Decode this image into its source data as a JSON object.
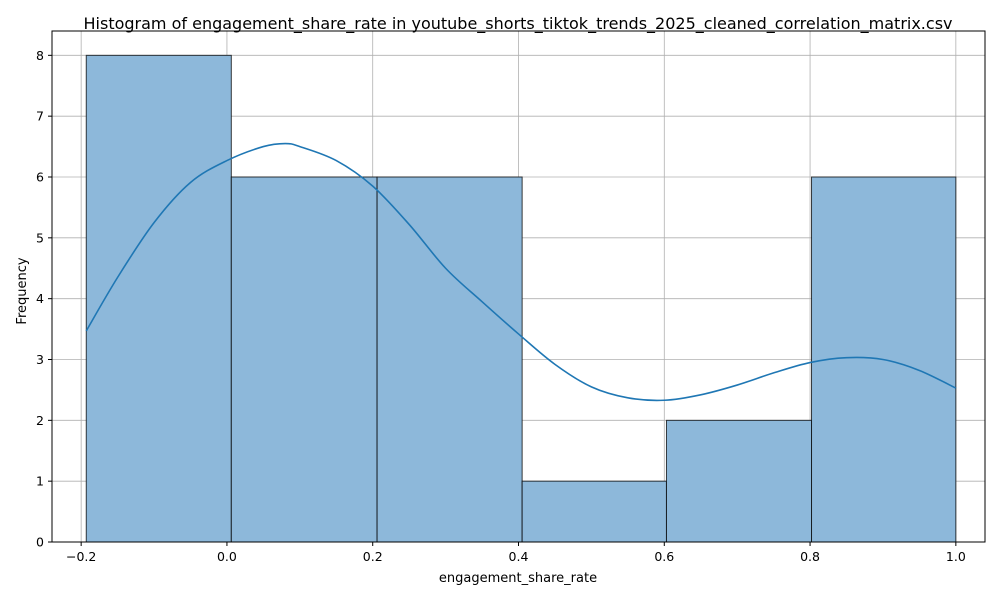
{
  "chart_data": {
    "type": "bar",
    "title": "Histogram of engagement_share_rate in youtube_shorts_tiktok_trends_2025_cleaned_correlation_matrix.csv",
    "xlabel": "engagement_share_rate",
    "ylabel": "Frequency",
    "xlim": [
      -0.24,
      1.04
    ],
    "ylim": [
      0,
      8.4
    ],
    "xticks": [
      -0.2,
      0.0,
      0.2,
      0.4,
      0.6,
      0.8,
      1.0
    ],
    "xtick_labels": [
      "−0.2",
      "0.0",
      "0.2",
      "0.4",
      "0.6",
      "0.8",
      "1.0"
    ],
    "yticks": [
      0,
      1,
      2,
      3,
      4,
      5,
      6,
      7,
      8
    ],
    "ytick_labels": [
      "0",
      "1",
      "2",
      "3",
      "4",
      "5",
      "6",
      "7",
      "8"
    ],
    "bins": [
      {
        "x0": -0.193,
        "x1": 0.006,
        "count": 8
      },
      {
        "x0": 0.006,
        "x1": 0.206,
        "count": 6
      },
      {
        "x0": 0.206,
        "x1": 0.405,
        "count": 6
      },
      {
        "x0": 0.405,
        "x1": 0.603,
        "count": 1
      },
      {
        "x0": 0.603,
        "x1": 0.802,
        "count": 2
      },
      {
        "x0": 0.802,
        "x1": 1.0,
        "count": 6
      }
    ],
    "kde": {
      "x": [
        -0.193,
        -0.15,
        -0.1,
        -0.05,
        0.0,
        0.05,
        0.08,
        0.1,
        0.15,
        0.2,
        0.25,
        0.3,
        0.35,
        0.4,
        0.45,
        0.5,
        0.55,
        0.6,
        0.65,
        0.7,
        0.75,
        0.8,
        0.85,
        0.9,
        0.95,
        1.0
      ],
      "y": [
        3.47,
        4.35,
        5.25,
        5.91,
        6.27,
        6.5,
        6.55,
        6.5,
        6.27,
        5.85,
        5.22,
        4.5,
        3.95,
        3.42,
        2.92,
        2.55,
        2.37,
        2.33,
        2.42,
        2.58,
        2.78,
        2.95,
        3.03,
        3.0,
        2.82,
        2.53
      ]
    },
    "grid": true,
    "colors": {
      "bar_fill": "#8db8da",
      "bar_edge": "#000000",
      "kde_line": "#1f77b4",
      "grid": "#b0b0b0"
    }
  }
}
